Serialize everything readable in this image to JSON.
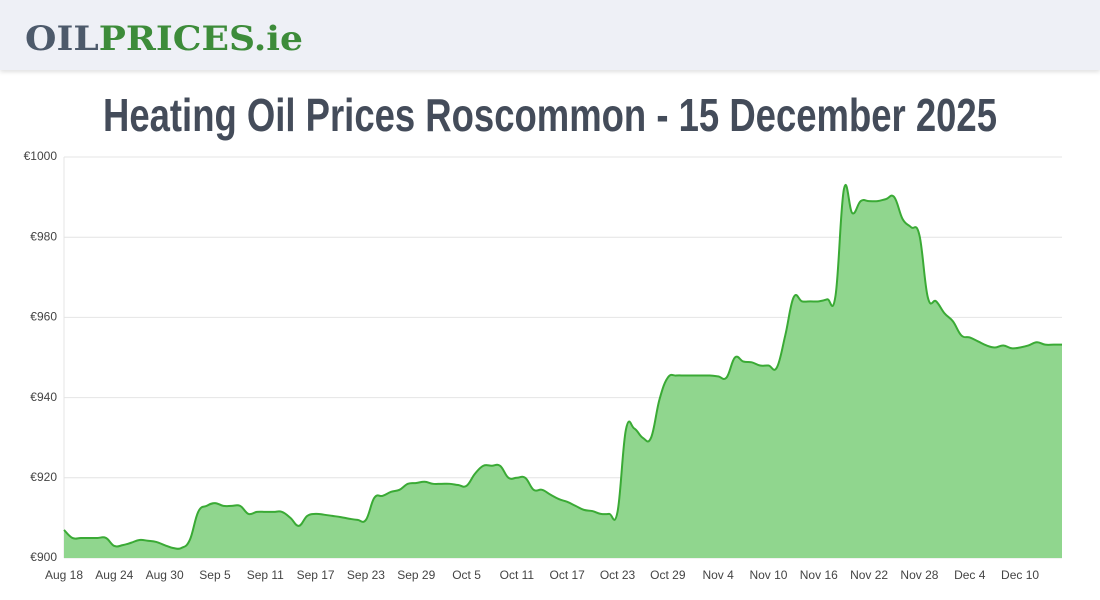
{
  "header": {
    "logo": {
      "first": "OIL",
      "second": "PRICES.ie"
    }
  },
  "chart_data": {
    "type": "area",
    "title": "Heating Oil Prices Roscommon - 15 December 2025",
    "categories": [
      "Aug 18",
      null,
      null,
      null,
      null,
      null,
      "Aug 24",
      null,
      null,
      null,
      null,
      null,
      "Aug 30",
      null,
      null,
      null,
      null,
      null,
      "Sep 5",
      null,
      null,
      null,
      null,
      null,
      "Sep 11",
      null,
      null,
      null,
      null,
      null,
      "Sep 17",
      null,
      null,
      null,
      null,
      null,
      "Sep 23",
      null,
      null,
      null,
      null,
      null,
      "Sep 29",
      null,
      null,
      null,
      null,
      null,
      "Oct 5",
      null,
      null,
      null,
      null,
      null,
      "Oct 11",
      null,
      null,
      null,
      null,
      null,
      "Oct 17",
      null,
      null,
      null,
      null,
      null,
      "Oct 23",
      null,
      null,
      null,
      null,
      null,
      "Oct 29",
      null,
      null,
      null,
      null,
      null,
      "Nov 4",
      null,
      null,
      null,
      null,
      null,
      "Nov 10",
      null,
      null,
      null,
      null,
      null,
      "Nov 16",
      null,
      null,
      null,
      null,
      null,
      "Nov 22",
      null,
      null,
      null,
      null,
      null,
      "Nov 28",
      null,
      null,
      null,
      null,
      null,
      "Dec 4",
      null,
      null,
      null,
      null,
      null,
      "Dec 10",
      null,
      null,
      null,
      null,
      null
    ],
    "values": [
      907,
      905,
      905,
      905,
      905,
      905,
      903,
      903.2,
      903.8,
      904.5,
      904.3,
      904,
      903.2,
      902.5,
      902.5,
      904.5,
      911.5,
      913,
      913.7,
      913,
      913,
      913,
      911,
      911.5,
      911.5,
      911.5,
      911.5,
      910,
      908,
      910.5,
      911,
      910.8,
      910.5,
      910.2,
      909.8,
      909.5,
      909.5,
      915,
      915.5,
      916.5,
      917,
      918.5,
      918.7,
      919,
      918.5,
      918.5,
      918.5,
      918.2,
      918,
      921,
      923,
      923,
      923,
      920,
      920,
      920,
      917,
      917,
      915.8,
      914.7,
      914,
      913,
      912,
      911.7,
      911,
      911,
      911.5,
      932,
      932.3,
      930,
      930,
      939.5,
      945,
      945.5,
      945.5,
      945.5,
      945.5,
      945.5,
      945.3,
      945,
      950,
      949,
      948.8,
      948,
      948,
      947.5,
      955.5,
      965,
      964,
      964,
      964,
      964.5,
      965.5,
      992,
      986,
      989,
      989,
      989,
      989.5,
      990,
      984.5,
      982.5,
      980.5,
      965,
      964,
      961,
      959,
      955.5,
      955,
      954,
      953,
      952.5,
      953,
      952.3,
      952.5,
      953,
      953.8,
      953.2,
      953.2,
      953.2
    ],
    "color": "#3aaa35",
    "fill_color": "#90d68e",
    "ylim": [
      900,
      1000
    ],
    "yticks": [
      {
        "value": 900,
        "label": "€900"
      },
      {
        "value": 920,
        "label": "€920"
      },
      {
        "value": 940,
        "label": "€940"
      },
      {
        "value": 960,
        "label": "€960"
      },
      {
        "value": 980,
        "label": "€980"
      },
      {
        "value": 1000,
        "label": "€1000"
      }
    ],
    "grid": true
  }
}
